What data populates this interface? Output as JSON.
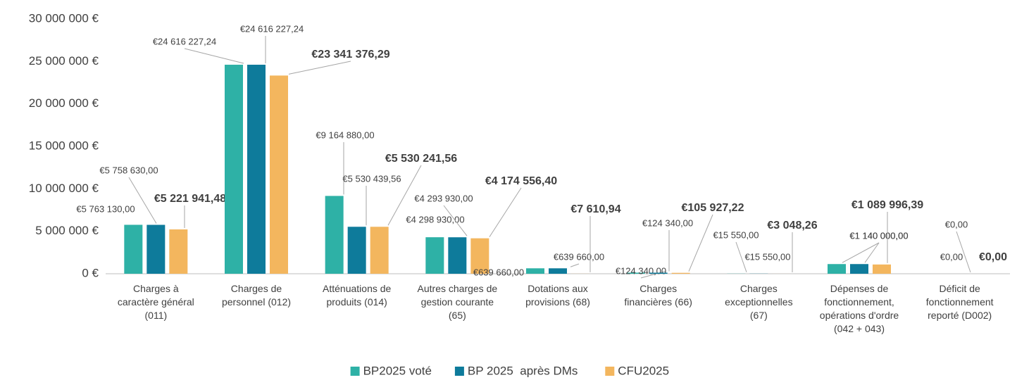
{
  "chart_data": {
    "type": "bar",
    "categories": [
      "Charges à caractère général (011)",
      "Charges de personnel (012)",
      "Atténuations de produits (014)",
      "Autres charges de gestion courante (65)",
      "Dotations aux provisions (68)",
      "Charges financières (66)",
      "Charges exceptionnelles (67)",
      "Dépenses de fonctionnement, opérations d'ordre (042 + 043)",
      "Déficit de fonctionnement reporté (D002)"
    ],
    "series": [
      {
        "name": "BP2025 voté",
        "color": "#2eb1a6",
        "values": [
          5763130,
          24616227.24,
          9164880,
          4298930,
          639660,
          124340,
          15550,
          1140000,
          0
        ],
        "value_labels": [
          "€5 763 130,00",
          "€24 616 227,24",
          "€9 164 880,00",
          "€4 298 930,00",
          "€639 660,00",
          "€124 340,00",
          "€15 550,00",
          "€1 140 000,00",
          "€0,00"
        ]
      },
      {
        "name": "BP 2025  après DMs",
        "color": "#0e7b9b",
        "values": [
          5758630,
          24616227.24,
          5530439.56,
          4293930,
          639660,
          124340,
          15550,
          1140000,
          0
        ],
        "value_labels": [
          "€5 758 630,00",
          "€24 616 227,24",
          "€5 530 439,56",
          "€4 293 930,00",
          "€639 660,00",
          "€124 340,00",
          "€15 550,00",
          "€1 140 000,00",
          "€0,00"
        ]
      },
      {
        "name": "CFU2025",
        "color": "#f3b65e",
        "values": [
          5221941.48,
          23341376.29,
          5530241.56,
          4174556.4,
          7610.94,
          105927.22,
          3048.26,
          1089996.39,
          0
        ],
        "value_labels": [
          "€5 221 941,48",
          "€23 341 376,29",
          "€5 530 241,56",
          "€4 174 556,40",
          "€7 610,94",
          "€105 927,22",
          "€3 048,26",
          "€1 089 996,39",
          "€0,00"
        ]
      }
    ],
    "ylim": [
      0,
      30000000
    ],
    "yticks": [
      {
        "value": 0,
        "label": "0 €"
      },
      {
        "value": 5000000,
        "label": "5 000 000 €"
      },
      {
        "value": 10000000,
        "label": "10 000 000 €"
      },
      {
        "value": 15000000,
        "label": "15 000 000 €"
      },
      {
        "value": 20000000,
        "label": "20 000 000 €"
      },
      {
        "value": 25000000,
        "label": "25 000 000 €"
      },
      {
        "value": 30000000,
        "label": "30 000 000 €"
      }
    ],
    "grid": false,
    "legend": "bottom"
  }
}
